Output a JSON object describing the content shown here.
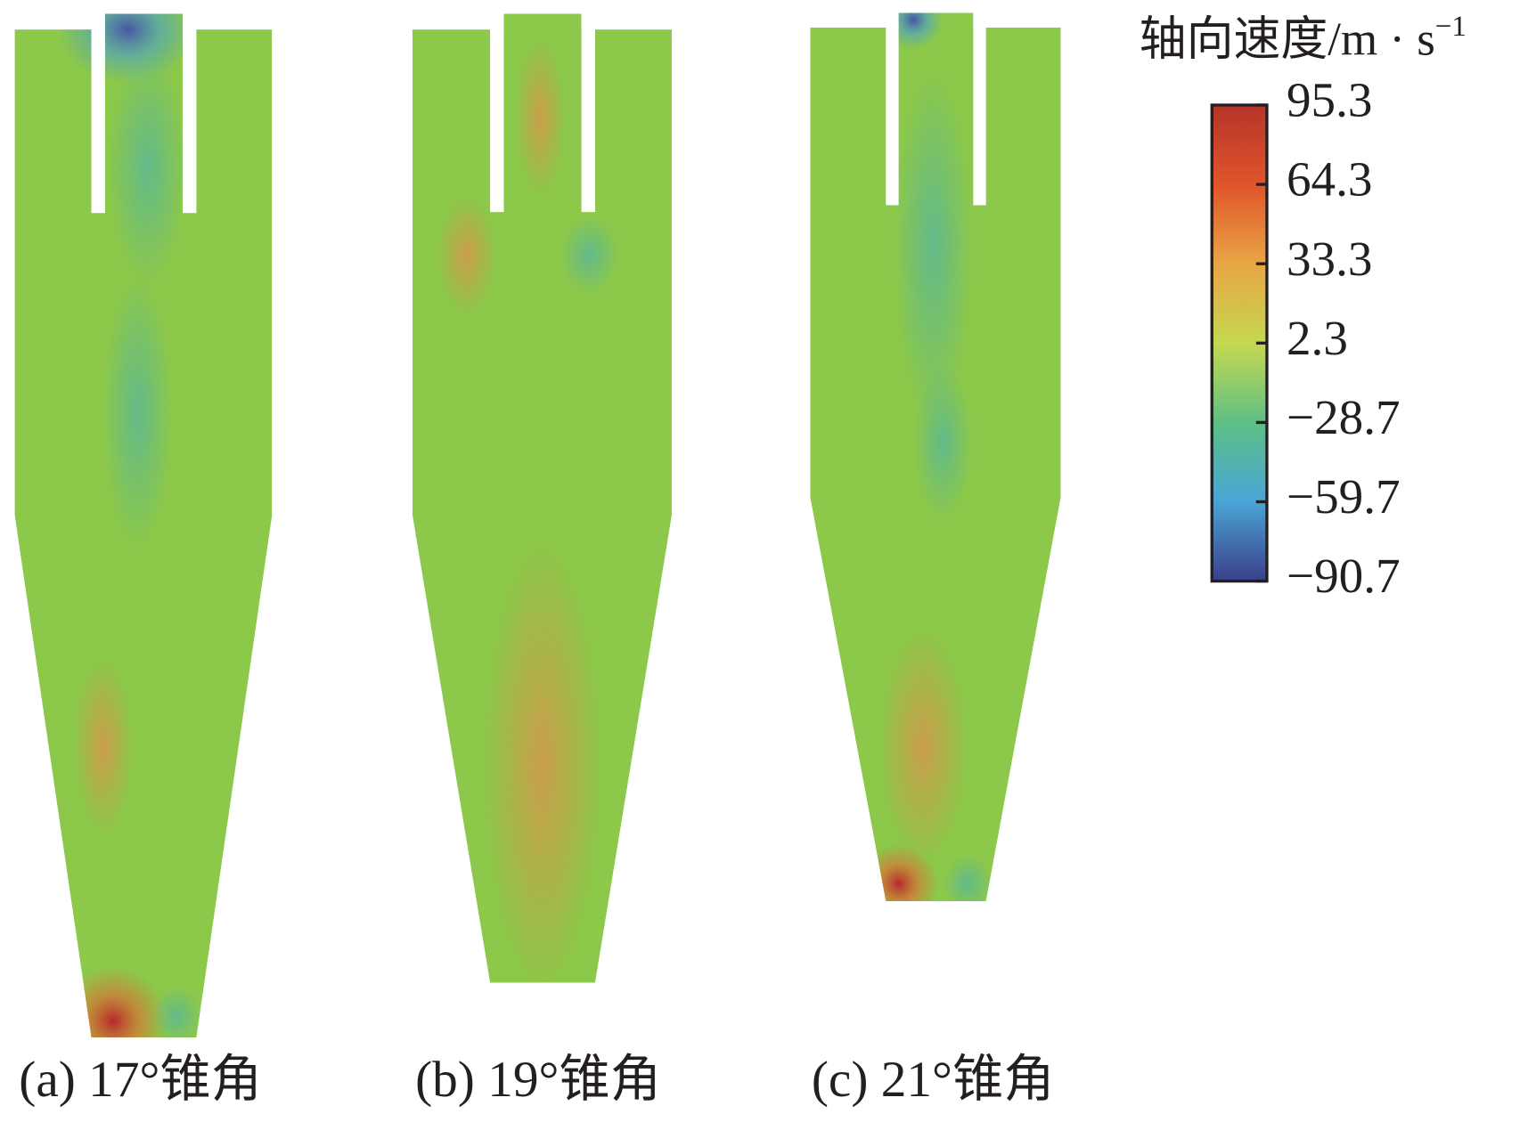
{
  "colorbar": {
    "title": "轴向速度/m · s",
    "title_sup": "−1",
    "ticks": [
      95.3,
      64.3,
      33.3,
      2.3,
      {
        "value": -28.7,
        "label": "−28.7"
      },
      {
        "value": -59.7,
        "label": "−59.7"
      },
      {
        "value": -90.7,
        "label": "−90.7"
      }
    ]
  },
  "panels": [
    {
      "caption": "(a) 17°锥角"
    },
    {
      "caption": "(b) 19°锥角"
    },
    {
      "caption": "(c) 21°锥角"
    }
  ]
}
